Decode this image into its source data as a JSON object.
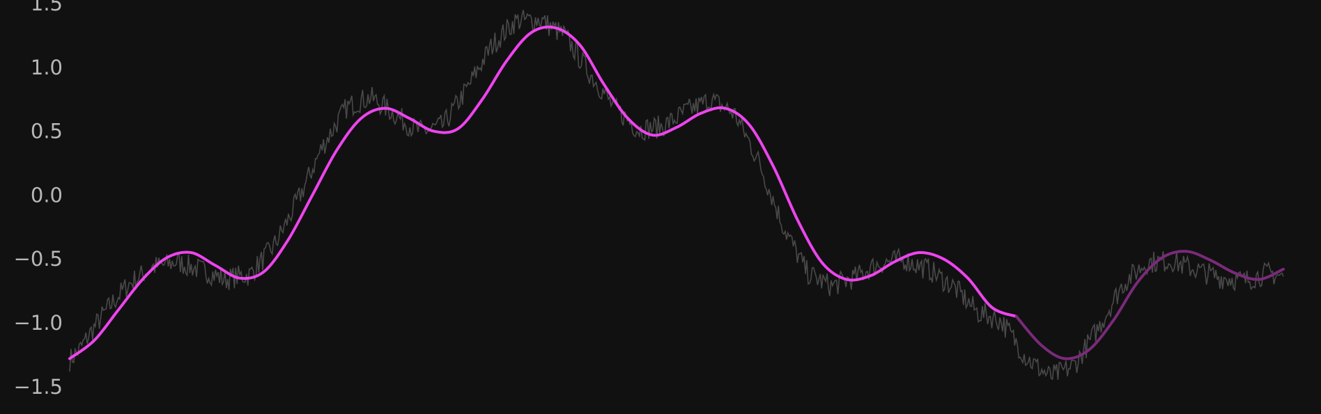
{
  "chart_data": {
    "type": "line",
    "title": "",
    "xlabel": "",
    "ylabel": "",
    "x_range": [
      0,
      1
    ],
    "ylim": [
      -1.7,
      1.5
    ],
    "grid": false,
    "legend": "none",
    "y_ticks": [
      {
        "value": 1.5,
        "label": "1.5"
      },
      {
        "value": 1.0,
        "label": "1.0"
      },
      {
        "value": 0.5,
        "label": "0.5"
      },
      {
        "value": 0.0,
        "label": "0.0"
      },
      {
        "value": -0.5,
        "label": "−0.5"
      },
      {
        "value": -1.0,
        "label": "−1.0"
      },
      {
        "value": -1.5,
        "label": "−1.5"
      }
    ],
    "series": [
      {
        "role": "noisy-signal",
        "color": "#4a4a4a",
        "model": "x+y+noise",
        "x_start": 0,
        "x_end": 1,
        "points": 900,
        "noise_amplitude": 0.09
      },
      {
        "role": "fitted-curve",
        "color": "#ee44ee",
        "x": [
          0.0,
          0.02,
          0.04,
          0.06,
          0.08,
          0.1,
          0.12,
          0.14,
          0.16,
          0.18,
          0.2,
          0.22,
          0.24,
          0.26,
          0.28,
          0.3,
          0.32,
          0.34,
          0.36,
          0.38,
          0.4,
          0.42,
          0.44,
          0.46,
          0.48,
          0.5,
          0.52,
          0.54,
          0.56,
          0.58,
          0.6,
          0.62,
          0.64,
          0.66,
          0.68,
          0.7,
          0.72,
          0.74,
          0.76,
          0.78
        ],
        "y": [
          -1.28,
          -1.14,
          -0.9,
          -0.66,
          -0.49,
          -0.45,
          -0.55,
          -0.65,
          -0.6,
          -0.35,
          0.0,
          0.35,
          0.6,
          0.68,
          0.6,
          0.5,
          0.52,
          0.75,
          1.05,
          1.27,
          1.31,
          1.18,
          0.87,
          0.6,
          0.47,
          0.53,
          0.64,
          0.68,
          0.55,
          0.22,
          -0.2,
          -0.53,
          -0.66,
          -0.63,
          -0.52,
          -0.45,
          -0.5,
          -0.65,
          -0.88,
          -0.95
        ]
      },
      {
        "role": "extrapolated-curve",
        "color": "#7a2a7a",
        "x": [
          0.78,
          0.8,
          0.82,
          0.84,
          0.86,
          0.88,
          0.9,
          0.92,
          0.94,
          0.96,
          0.98,
          1.0
        ],
        "y": [
          -0.95,
          -1.17,
          -1.28,
          -1.21,
          -0.98,
          -0.68,
          -0.49,
          -0.44,
          -0.51,
          -0.61,
          -0.66,
          -0.58
        ]
      }
    ]
  }
}
